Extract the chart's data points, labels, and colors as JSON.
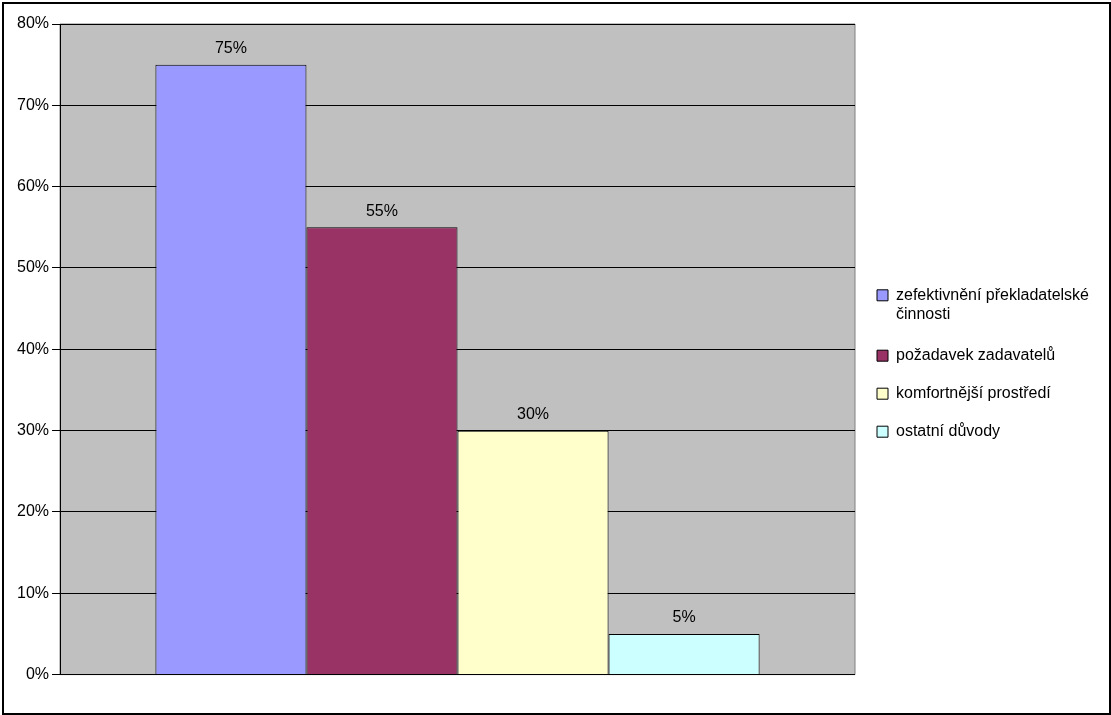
{
  "chart_data": {
    "type": "bar",
    "categories": [
      null
    ],
    "series": [
      {
        "name": "zefektivnění překladatelské činnosti",
        "color": "#9999ff",
        "values": [
          75
        ],
        "value_labels": [
          "75%"
        ]
      },
      {
        "name": "požadavek zadavatelů",
        "color": "#993366",
        "values": [
          55
        ],
        "value_labels": [
          "55%"
        ]
      },
      {
        "name": "komfortnější prostředí",
        "color": "#ffffcc",
        "values": [
          30
        ],
        "value_labels": [
          "30%"
        ]
      },
      {
        "name": "ostatní důvody",
        "color": "#ccffff",
        "values": [
          5
        ],
        "value_labels": [
          "5%"
        ]
      }
    ],
    "ylim": [
      0,
      80
    ],
    "yticks": [
      {
        "value": 0,
        "label": "0%"
      },
      {
        "value": 10,
        "label": "10%"
      },
      {
        "value": 20,
        "label": "20%"
      },
      {
        "value": 30,
        "label": "30%"
      },
      {
        "value": 40,
        "label": "40%"
      },
      {
        "value": 50,
        "label": "50%"
      },
      {
        "value": 60,
        "label": "60%"
      },
      {
        "value": 70,
        "label": "70%"
      },
      {
        "value": 80,
        "label": "80%"
      }
    ],
    "grid": "y",
    "legend": "right"
  }
}
